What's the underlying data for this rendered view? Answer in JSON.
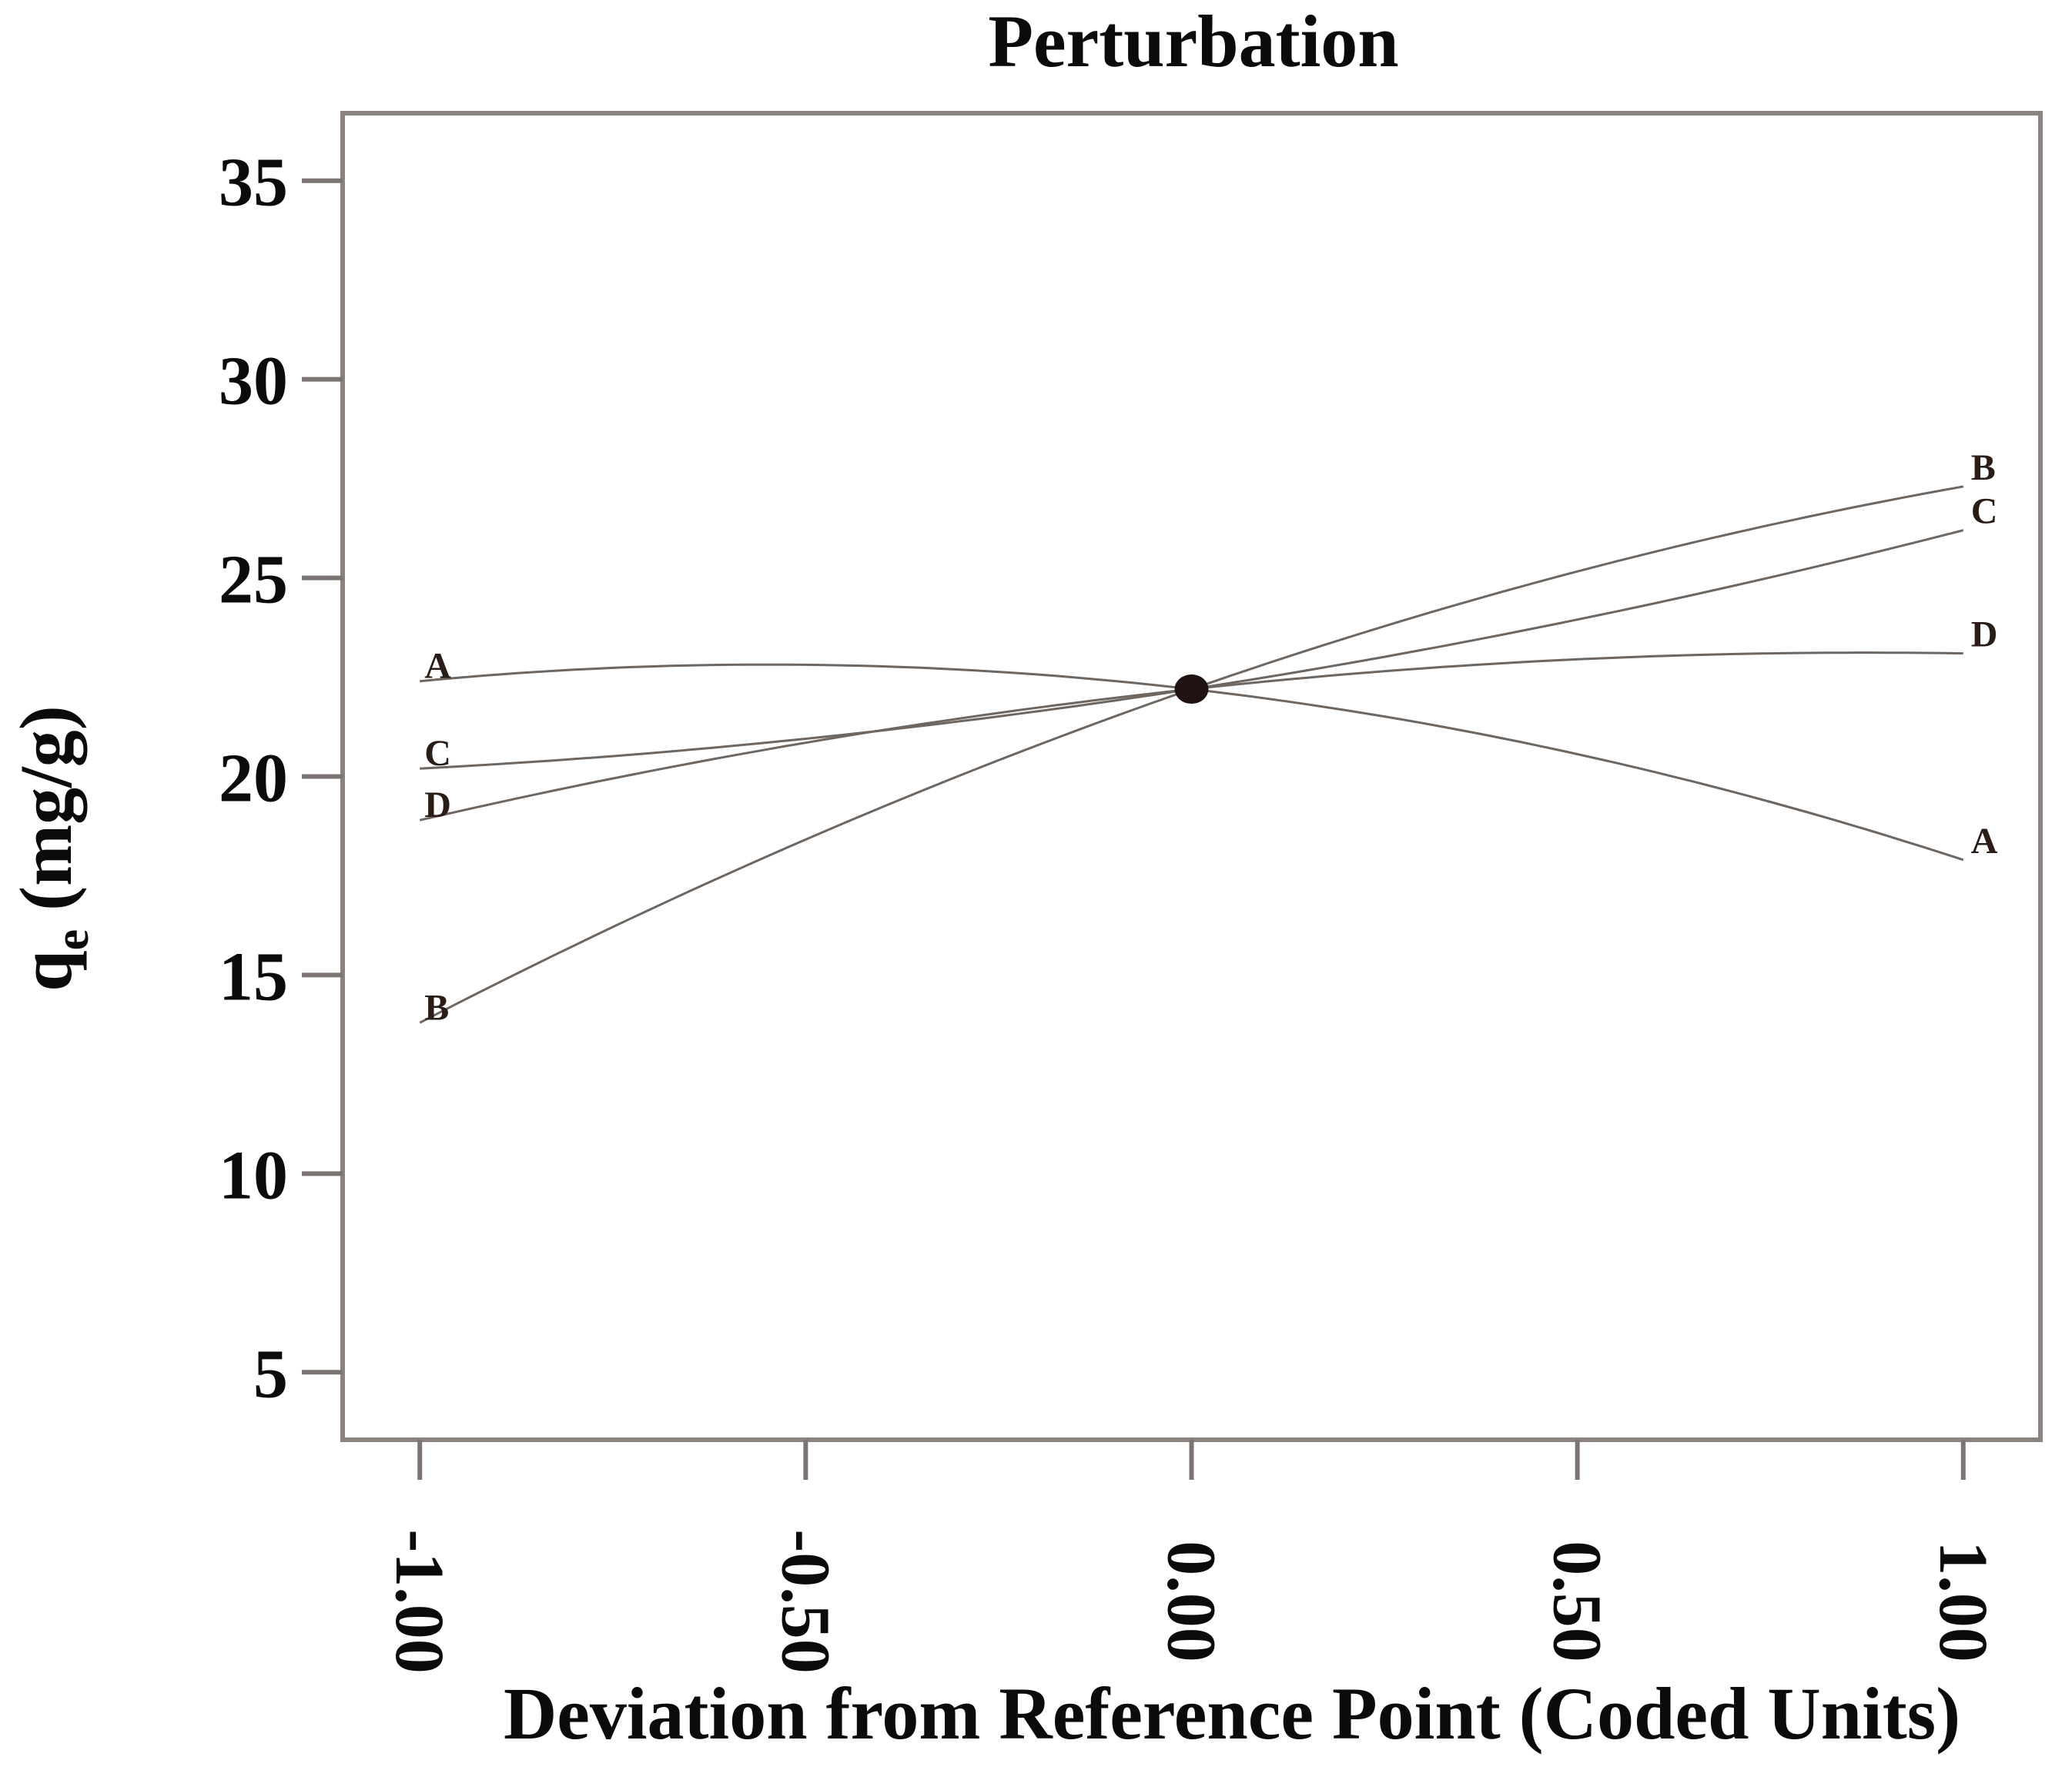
{
  "title": "Perturbation",
  "axes": {
    "x": {
      "label": "Deviation from Reference Point (Coded Units)",
      "tick_labels": [
        "-1.00",
        "-0.50",
        "0.00",
        "0.50",
        "1.00"
      ],
      "tick_values": [
        -1,
        -0.5,
        0,
        0.5,
        1
      ]
    },
    "y": {
      "label_q": "q",
      "label_sub": "e",
      "label_units": " (mg/g)",
      "tick_labels": [
        "35",
        "30",
        "25",
        "20",
        "15",
        "10",
        "5"
      ],
      "tick_values": [
        35,
        30,
        25,
        20,
        15,
        10,
        5
      ]
    }
  },
  "chart_data": {
    "type": "line",
    "title": "Perturbation",
    "xlabel": "Deviation from Reference Point (Coded Units)",
    "ylabel": "qe (mg/g)",
    "x": [
      -1,
      -0.5,
      0,
      0.5,
      1
    ],
    "series": [
      {
        "name": "A",
        "values": [
          22.4,
          22.8,
          22.2,
          20.6,
          17.9
        ]
      },
      {
        "name": "B",
        "values": [
          13.8,
          18.4,
          22.2,
          25.2,
          27.3
        ]
      },
      {
        "name": "C",
        "values": [
          20.2,
          21.0,
          22.2,
          24.0,
          26.2
        ]
      },
      {
        "name": "D",
        "values": [
          18.9,
          20.9,
          22.2,
          23.0,
          23.1
        ]
      }
    ],
    "reference_point": {
      "x": 0.0,
      "y": 22.2
    },
    "xlim": [
      -1.1,
      1.1
    ],
    "ylim": [
      3.3,
      36.7
    ],
    "grid": false,
    "legend": "curve-end-labels"
  },
  "colors": {
    "background": "#ffffff",
    "text": "#0b0b0b",
    "spine": "#8a8380",
    "tick": "#7b7472",
    "curve": "#6e6660",
    "reference_dot": "#1f1210",
    "curve_label": "#2a1c16"
  }
}
